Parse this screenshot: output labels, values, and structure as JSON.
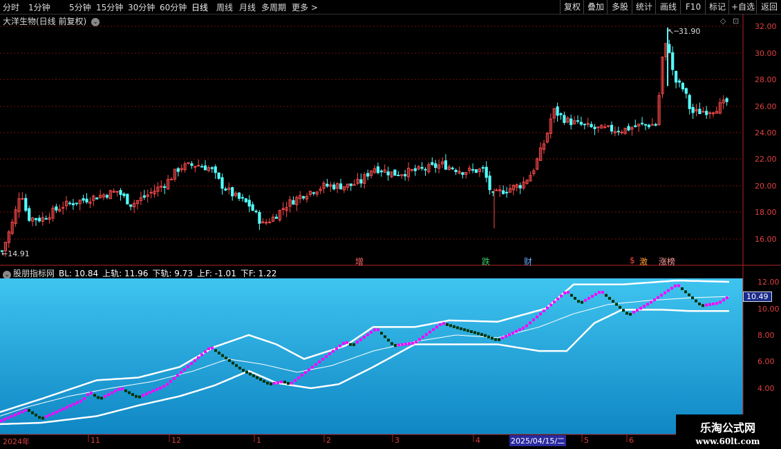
{
  "toolbar": {
    "periods": [
      "分时",
      "1分钟",
      "5分钟",
      "15分钟",
      "30分钟",
      "60分钟",
      "日线",
      "周线",
      "月线",
      "多周期",
      "更多 >"
    ],
    "active_period": "日线",
    "right_buttons": [
      "复权",
      "叠加",
      "多股",
      "统计",
      "画线",
      "F10",
      "标记",
      "+自选",
      "返回"
    ]
  },
  "chart": {
    "title": "大洋生物(日线 前复权)",
    "high_label": "31.90",
    "low_label": "14.91",
    "price_ticks": [
      "32.00",
      "30.00",
      "28.00",
      "26.00",
      "24.00",
      "22.00",
      "20.00",
      "18.00",
      "16.00"
    ],
    "markers": [
      {
        "text": "增",
        "color": "#ff6666"
      },
      {
        "text": "跌",
        "color": "#33cc66"
      },
      {
        "text": "财",
        "color": "#66aaff"
      },
      {
        "text": "$",
        "color": "#ff4444"
      },
      {
        "text": "激",
        "color": "#ff9933"
      },
      {
        "text": "涨榜",
        "color": "#ff9999"
      }
    ]
  },
  "indicator": {
    "name": "股朋指标网",
    "bl": "BL: 10.84",
    "upper": "上轨: 11.96",
    "lower": "下轨: 9.73",
    "uf": "上F: -1.01",
    "df": "下F: 1.22",
    "ticks": [
      "12.00",
      "10.00",
      "8.00",
      "6.00",
      "4.00"
    ],
    "current_value": "10.49"
  },
  "xaxis": {
    "labels": [
      "2024年",
      "11",
      "12",
      "1",
      "2",
      "3",
      "4",
      "2025/04/15/二",
      "5",
      "6"
    ]
  },
  "watermark": {
    "line1": "乐淘公式网",
    "line2": "www.60lt.com"
  },
  "colors": {
    "up": "#ff4a4a",
    "down": "#54ffff",
    "grid": "#7a1010",
    "axis": "#b22222",
    "step_up": "#ff00ff",
    "step_down": "#003300"
  }
}
